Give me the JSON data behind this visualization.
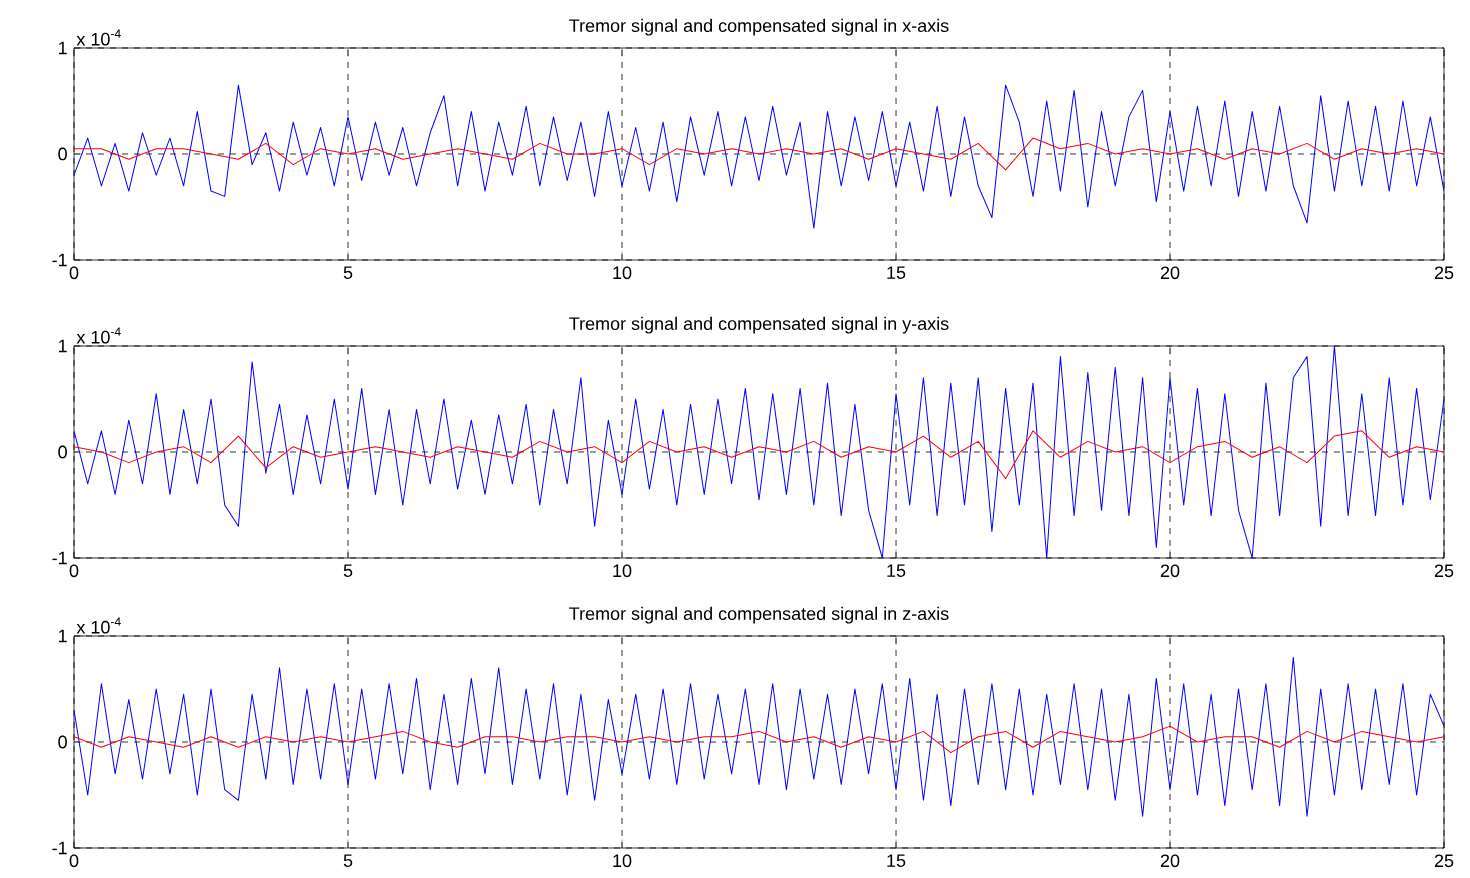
{
  "chart_data": [
    {
      "type": "line",
      "title": "Tremor  signal  and compensated signal in x-axis",
      "annotations": [
        "x 10$^{-4}$"
      ],
      "xlim": [
        0,
        25
      ],
      "ylim": [
        -1,
        1
      ],
      "xticks": [
        0,
        5,
        10,
        15,
        20,
        25
      ],
      "yticks": [
        -1,
        0,
        1
      ],
      "grid": true,
      "marker": "none",
      "line_style": "solid",
      "x": [
        0,
        0.25,
        0.5,
        0.75,
        1,
        1.25,
        1.5,
        1.75,
        2,
        2.25,
        2.5,
        2.75,
        3,
        3.25,
        3.5,
        3.75,
        4,
        4.25,
        4.5,
        4.75,
        5,
        5.25,
        5.5,
        5.75,
        6,
        6.25,
        6.5,
        6.75,
        7,
        7.25,
        7.5,
        7.75,
        8,
        8.25,
        8.5,
        8.75,
        9,
        9.25,
        9.5,
        9.75,
        10,
        10.25,
        10.5,
        10.75,
        11,
        11.25,
        11.5,
        11.75,
        12,
        12.25,
        12.5,
        12.75,
        13,
        13.25,
        13.5,
        13.75,
        14,
        14.25,
        14.5,
        14.75,
        15,
        15.25,
        15.5,
        15.75,
        16,
        16.25,
        16.5,
        16.75,
        17,
        17.25,
        17.5,
        17.75,
        18,
        18.25,
        18.5,
        18.75,
        19,
        19.25,
        19.5,
        19.75,
        20,
        20.25,
        20.5,
        20.75,
        21,
        21.25,
        21.5,
        21.75,
        22,
        22.25,
        22.5,
        22.75,
        23,
        23.25,
        23.5,
        23.75,
        24,
        24.25,
        24.5,
        24.75,
        25
      ],
      "series": [
        {
          "color": "#0000ff",
          "values": [
            -0.2,
            0.15,
            -0.3,
            0.1,
            -0.35,
            0.2,
            -0.2,
            0.15,
            -0.3,
            0.4,
            -0.35,
            -0.4,
            0.65,
            -0.1,
            0.2,
            -0.35,
            0.3,
            -0.2,
            0.25,
            -0.3,
            0.35,
            -0.25,
            0.3,
            -0.2,
            0.25,
            -0.3,
            0.2,
            0.55,
            -0.3,
            0.4,
            -0.35,
            0.3,
            -0.2,
            0.45,
            -0.3,
            0.35,
            -0.25,
            0.3,
            -0.4,
            0.4,
            -0.3,
            0.25,
            -0.35,
            0.3,
            -0.45,
            0.35,
            -0.2,
            0.4,
            -0.3,
            0.35,
            -0.25,
            0.45,
            -0.2,
            0.3,
            -0.7,
            0.4,
            -0.3,
            0.35,
            -0.25,
            0.4,
            -0.3,
            0.3,
            -0.35,
            0.45,
            -0.4,
            0.35,
            -0.3,
            -0.6,
            0.65,
            0.3,
            -0.4,
            0.5,
            -0.35,
            0.6,
            -0.5,
            0.4,
            -0.3,
            0.35,
            0.6,
            -0.45,
            0.4,
            -0.35,
            0.45,
            -0.3,
            0.5,
            -0.4,
            0.4,
            -0.35,
            0.45,
            -0.3,
            -0.65,
            0.55,
            -0.35,
            0.5,
            -0.3,
            0.45,
            -0.35,
            0.5,
            -0.3,
            0.35,
            -0.35
          ]
        },
        {
          "color": "#ff0000",
          "x": [
            0,
            0.5,
            1,
            1.5,
            2,
            2.5,
            3,
            3.5,
            4,
            4.5,
            5,
            5.5,
            6,
            6.5,
            7,
            7.5,
            8,
            8.5,
            9,
            9.5,
            10,
            10.5,
            11,
            11.5,
            12,
            12.5,
            13,
            13.5,
            14,
            14.5,
            15,
            15.5,
            16,
            16.5,
            17,
            17.5,
            18,
            18.5,
            19,
            19.5,
            20,
            20.5,
            21,
            21.5,
            22,
            22.5,
            23,
            23.5,
            24,
            24.5,
            25
          ],
          "values": [
            0.05,
            0.05,
            -0.05,
            0.05,
            0.05,
            0,
            -0.05,
            0.1,
            -0.1,
            0.05,
            0,
            0.05,
            -0.05,
            0,
            0.05,
            0,
            -0.05,
            0.1,
            0,
            0,
            0.05,
            -0.1,
            0.05,
            0,
            0.05,
            0,
            0.05,
            0,
            0.05,
            -0.05,
            0.05,
            0,
            -0.05,
            0.1,
            -0.15,
            0.15,
            0.05,
            0.1,
            0,
            0.05,
            0,
            0.05,
            -0.05,
            0.05,
            0,
            0.1,
            -0.05,
            0.05,
            0,
            0.05,
            0
          ]
        }
      ]
    },
    {
      "type": "line",
      "title": "Tremor  signal  and compensated signal in y-axis",
      "annotations": [
        "x 10$^{-4}$"
      ],
      "xlim": [
        0,
        25
      ],
      "ylim": [
        -1,
        1
      ],
      "xticks": [
        0,
        5,
        10,
        15,
        20,
        25
      ],
      "yticks": [
        -1,
        0,
        1
      ],
      "grid": true,
      "marker": "none",
      "line_style": "solid",
      "x": [
        0,
        0.25,
        0.5,
        0.75,
        1,
        1.25,
        1.5,
        1.75,
        2,
        2.25,
        2.5,
        2.75,
        3,
        3.25,
        3.5,
        3.75,
        4,
        4.25,
        4.5,
        4.75,
        5,
        5.25,
        5.5,
        5.75,
        6,
        6.25,
        6.5,
        6.75,
        7,
        7.25,
        7.5,
        7.75,
        8,
        8.25,
        8.5,
        8.75,
        9,
        9.25,
        9.5,
        9.75,
        10,
        10.25,
        10.5,
        10.75,
        11,
        11.25,
        11.5,
        11.75,
        12,
        12.25,
        12.5,
        12.75,
        13,
        13.25,
        13.5,
        13.75,
        14,
        14.25,
        14.5,
        14.75,
        15,
        15.25,
        15.5,
        15.75,
        16,
        16.25,
        16.5,
        16.75,
        17,
        17.25,
        17.5,
        17.75,
        18,
        18.25,
        18.5,
        18.75,
        19,
        19.25,
        19.5,
        19.75,
        20,
        20.25,
        20.5,
        20.75,
        21,
        21.25,
        21.5,
        21.75,
        22,
        22.25,
        22.5,
        22.75,
        23,
        23.25,
        23.5,
        23.75,
        24,
        24.25,
        24.5,
        24.75,
        25
      ],
      "series": [
        {
          "color": "#0000ff",
          "values": [
            0.2,
            -0.3,
            0.2,
            -0.4,
            0.3,
            -0.3,
            0.55,
            -0.4,
            0.4,
            -0.3,
            0.5,
            -0.5,
            -0.7,
            0.85,
            -0.2,
            0.45,
            -0.4,
            0.35,
            -0.3,
            0.5,
            -0.35,
            0.6,
            -0.4,
            0.4,
            -0.5,
            0.4,
            -0.3,
            0.5,
            -0.35,
            0.3,
            -0.4,
            0.35,
            -0.3,
            0.45,
            -0.5,
            0.4,
            -0.3,
            0.7,
            -0.7,
            0.3,
            -0.4,
            0.5,
            -0.35,
            0.4,
            -0.5,
            0.45,
            -0.4,
            0.5,
            -0.3,
            0.6,
            -0.45,
            0.55,
            -0.4,
            0.6,
            -0.5,
            0.65,
            -0.6,
            0.45,
            -0.55,
            -1.0,
            0.55,
            -0.5,
            0.7,
            -0.6,
            0.65,
            -0.5,
            0.7,
            -0.75,
            0.6,
            -0.5,
            0.65,
            -1.0,
            0.9,
            -0.6,
            0.75,
            -0.55,
            0.8,
            -0.6,
            0.7,
            -0.9,
            0.7,
            -0.5,
            0.6,
            -0.6,
            0.55,
            -0.55,
            -1.0,
            0.65,
            -0.6,
            0.7,
            0.9,
            -0.7,
            1.0,
            -0.6,
            0.55,
            -0.6,
            0.7,
            -0.5,
            0.6,
            -0.45,
            0.5
          ]
        },
        {
          "color": "#ff0000",
          "x": [
            0,
            0.5,
            1,
            1.5,
            2,
            2.5,
            3,
            3.5,
            4,
            4.5,
            5,
            5.5,
            6,
            6.5,
            7,
            7.5,
            8,
            8.5,
            9,
            9.5,
            10,
            10.5,
            11,
            11.5,
            12,
            12.5,
            13,
            13.5,
            14,
            14.5,
            15,
            15.5,
            16,
            16.5,
            17,
            17.5,
            18,
            18.5,
            19,
            19.5,
            20,
            20.5,
            21,
            21.5,
            22,
            22.5,
            23,
            23.5,
            24,
            24.5,
            25
          ],
          "values": [
            0.05,
            0,
            -0.1,
            0,
            0.05,
            -0.1,
            0.15,
            -0.15,
            0.05,
            -0.05,
            0,
            0.05,
            0,
            -0.05,
            0.05,
            0,
            -0.05,
            0.1,
            0,
            0.05,
            -0.1,
            0.1,
            0,
            0.05,
            -0.05,
            0.05,
            0,
            0.1,
            -0.05,
            0.05,
            0,
            0.15,
            -0.05,
            0.1,
            -0.25,
            0.2,
            -0.05,
            0.1,
            0,
            0.05,
            -0.1,
            0.05,
            0.1,
            -0.05,
            0.05,
            -0.1,
            0.15,
            0.2,
            -0.05,
            0.05,
            0
          ]
        }
      ]
    },
    {
      "type": "line",
      "title": "Tremor  signal  and compensated signal in z-axis",
      "annotations": [
        "x 10$^{-4}$"
      ],
      "xlim": [
        0,
        25
      ],
      "ylim": [
        -1,
        1
      ],
      "xticks": [
        0,
        5,
        10,
        15,
        20,
        25
      ],
      "yticks": [
        -1,
        0,
        1
      ],
      "grid": true,
      "marker": "none",
      "line_style": "solid",
      "x": [
        0,
        0.25,
        0.5,
        0.75,
        1,
        1.25,
        1.5,
        1.75,
        2,
        2.25,
        2.5,
        2.75,
        3,
        3.25,
        3.5,
        3.75,
        4,
        4.25,
        4.5,
        4.75,
        5,
        5.25,
        5.5,
        5.75,
        6,
        6.25,
        6.5,
        6.75,
        7,
        7.25,
        7.5,
        7.75,
        8,
        8.25,
        8.5,
        8.75,
        9,
        9.25,
        9.5,
        9.75,
        10,
        10.25,
        10.5,
        10.75,
        11,
        11.25,
        11.5,
        11.75,
        12,
        12.25,
        12.5,
        12.75,
        13,
        13.25,
        13.5,
        13.75,
        14,
        14.25,
        14.5,
        14.75,
        15,
        15.25,
        15.5,
        15.75,
        16,
        16.25,
        16.5,
        16.75,
        17,
        17.25,
        17.5,
        17.75,
        18,
        18.25,
        18.5,
        18.75,
        19,
        19.25,
        19.5,
        19.75,
        20,
        20.25,
        20.5,
        20.75,
        21,
        21.25,
        21.5,
        21.75,
        22,
        22.25,
        22.5,
        22.75,
        23,
        23.25,
        23.5,
        23.75,
        24,
        24.25,
        24.5,
        24.75,
        25
      ],
      "series": [
        {
          "color": "#0000ff",
          "values": [
            0.3,
            -0.5,
            0.55,
            -0.3,
            0.4,
            -0.35,
            0.5,
            -0.3,
            0.45,
            -0.5,
            0.5,
            -0.45,
            -0.55,
            0.45,
            -0.35,
            0.7,
            -0.4,
            0.5,
            -0.35,
            0.55,
            -0.4,
            0.5,
            -0.35,
            0.55,
            -0.3,
            0.6,
            -0.45,
            0.45,
            -0.4,
            0.6,
            -0.3,
            0.7,
            -0.4,
            0.5,
            -0.35,
            0.55,
            -0.5,
            0.45,
            -0.55,
            0.4,
            -0.3,
            0.45,
            -0.35,
            0.5,
            -0.4,
            0.55,
            -0.35,
            0.45,
            -0.3,
            0.5,
            -0.4,
            0.55,
            -0.45,
            0.5,
            -0.35,
            0.45,
            -0.4,
            0.5,
            -0.3,
            0.55,
            -0.45,
            0.6,
            -0.55,
            0.45,
            -0.6,
            0.5,
            -0.4,
            0.55,
            -0.45,
            0.5,
            -0.5,
            0.45,
            -0.4,
            0.55,
            -0.45,
            0.5,
            -0.55,
            0.45,
            -0.7,
            0.6,
            -0.45,
            0.55,
            -0.5,
            0.45,
            -0.6,
            0.5,
            -0.45,
            0.55,
            -0.6,
            0.8,
            -0.7,
            0.5,
            -0.5,
            0.55,
            -0.45,
            0.5,
            -0.4,
            0.55,
            -0.5,
            0.45,
            0.15
          ]
        },
        {
          "color": "#ff0000",
          "x": [
            0,
            0.5,
            1,
            1.5,
            2,
            2.5,
            3,
            3.5,
            4,
            4.5,
            5,
            5.5,
            6,
            6.5,
            7,
            7.5,
            8,
            8.5,
            9,
            9.5,
            10,
            10.5,
            11,
            11.5,
            12,
            12.5,
            13,
            13.5,
            14,
            14.5,
            15,
            15.5,
            16,
            16.5,
            17,
            17.5,
            18,
            18.5,
            19,
            19.5,
            20,
            20.5,
            21,
            21.5,
            22,
            22.5,
            23,
            23.5,
            24,
            24.5,
            25
          ],
          "values": [
            0.05,
            -0.05,
            0.05,
            0,
            -0.05,
            0.05,
            -0.05,
            0.05,
            0,
            0.05,
            0,
            0.05,
            0.1,
            0,
            -0.05,
            0.05,
            0.05,
            0,
            0.05,
            0.05,
            0,
            0.05,
            0,
            0.05,
            0.05,
            0.1,
            0,
            0.05,
            -0.05,
            0.05,
            0,
            0.1,
            -0.1,
            0.05,
            0.1,
            -0.05,
            0.1,
            0.05,
            0,
            0.05,
            0.15,
            0,
            0.05,
            0.05,
            -0.05,
            0.1,
            0,
            0.1,
            0.05,
            0,
            0.05
          ]
        }
      ]
    }
  ]
}
